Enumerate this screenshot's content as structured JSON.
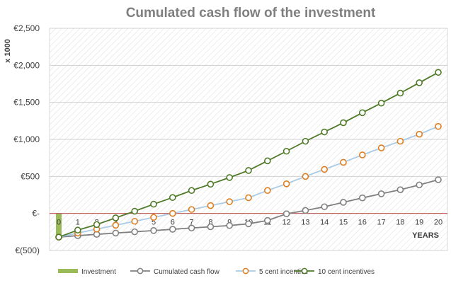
{
  "chart_data": {
    "type": "line",
    "title": "Cumulated cash flow of the investment",
    "ylabel": "x 1000",
    "xlabel": "YEARS",
    "ylim": [
      -500,
      2500
    ],
    "ytick_values": [
      -500,
      0,
      500,
      1000,
      1500,
      2000,
      2500
    ],
    "ytick_labels": [
      "€(500)",
      "€-",
      "€500",
      "€1,000",
      "€1,500",
      "€2,000",
      "€2,500"
    ],
    "x": [
      0,
      1,
      2,
      3,
      4,
      5,
      6,
      7,
      8,
      9,
      10,
      11,
      12,
      13,
      14,
      15,
      16,
      17,
      18,
      19,
      20
    ],
    "xtick_labels": [
      "0",
      "1",
      "2",
      "3",
      "4",
      "5",
      "6",
      "7",
      "8",
      "9",
      "10",
      "11",
      "12",
      "13",
      "14",
      "15",
      "16",
      "17",
      "18",
      "19",
      "20"
    ],
    "grid": true,
    "legend_position": "bottom",
    "series": [
      {
        "name": "Investment",
        "kind": "bar",
        "color": "#9bbb59",
        "values": [
          -320,
          0,
          0,
          0,
          0,
          0,
          0,
          0,
          0,
          0,
          0,
          0,
          0,
          0,
          0,
          0,
          0,
          0,
          0,
          0,
          0
        ]
      },
      {
        "name": "Cumulated cash flow",
        "kind": "line",
        "color": "#808080",
        "values": [
          -320,
          -300,
          -282,
          -265,
          -248,
          -231,
          -214,
          -197,
          -180,
          -163,
          -140,
          -95,
          -5,
          40,
          90,
          150,
          210,
          265,
          320,
          385,
          455
        ]
      },
      {
        "name": "5 cent incentive",
        "kind": "line",
        "color": "#e07e1f",
        "line_color": "#a9cbe6",
        "values": [
          -320,
          -265,
          -212,
          -159,
          -106,
          -53,
          0,
          53,
          106,
          159,
          212,
          310,
          400,
          500,
          595,
          690,
          790,
          885,
          975,
          1070,
          1175
        ]
      },
      {
        "name": "10 cent incentives",
        "kind": "line",
        "color": "#4f7a28",
        "values": [
          -320,
          -225,
          -150,
          -60,
          30,
          125,
          215,
          310,
          395,
          485,
          580,
          710,
          840,
          975,
          1100,
          1225,
          1360,
          1490,
          1625,
          1765,
          1905
        ]
      }
    ]
  }
}
